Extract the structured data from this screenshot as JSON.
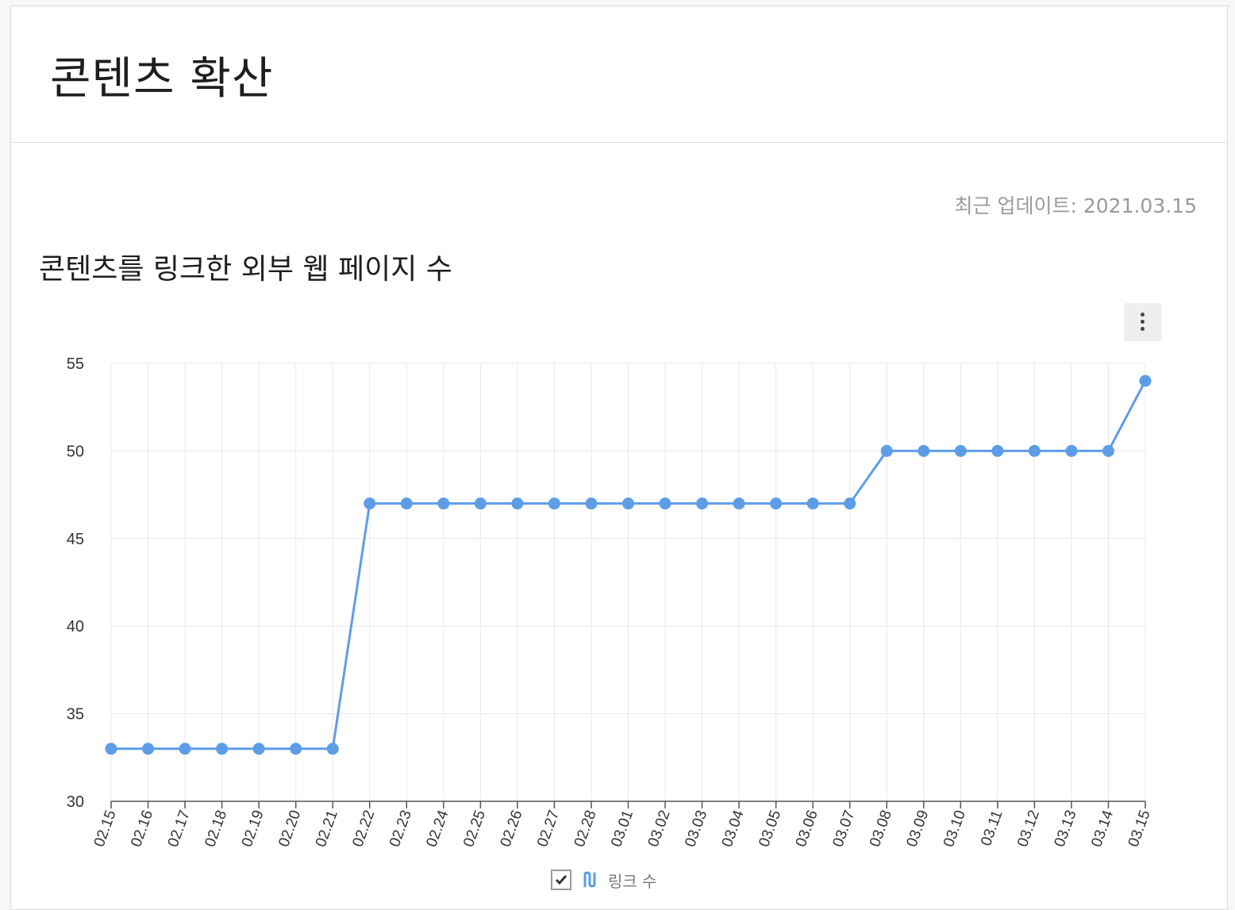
{
  "page_title": "콘텐츠 확산",
  "updated_text": "최근 업데이트: 2021.03.15",
  "section_title": "콘텐츠를 링크한 외부 웹 페이지 수",
  "menu": {
    "icon": "more-vertical-icon"
  },
  "legend": {
    "label": "링크 수",
    "checked": true,
    "check_icon": "checkmark-icon",
    "series_icon": "line-series-icon"
  },
  "colors": {
    "series": "#5d9de8",
    "grid": "#e8e8e8",
    "axis": "#555555"
  },
  "chart_data": {
    "type": "line",
    "title": "콘텐츠를 링크한 외부 웹 페이지 수",
    "xlabel": "",
    "ylabel": "",
    "categories": [
      "02.15",
      "02.16",
      "02.17",
      "02.18",
      "02.19",
      "02.20",
      "02.21",
      "02.22",
      "02.23",
      "02.24",
      "02.25",
      "02.26",
      "02.27",
      "02.28",
      "03.01",
      "03.02",
      "03.03",
      "03.04",
      "03.05",
      "03.06",
      "03.07",
      "03.08",
      "03.09",
      "03.10",
      "03.11",
      "03.12",
      "03.13",
      "03.14",
      "03.15"
    ],
    "series": [
      {
        "name": "링크 수",
        "values": [
          33,
          33,
          33,
          33,
          33,
          33,
          33,
          47,
          47,
          47,
          47,
          47,
          47,
          47,
          47,
          47,
          47,
          47,
          47,
          47,
          47,
          50,
          50,
          50,
          50,
          50,
          50,
          50,
          54
        ]
      }
    ],
    "ylim": [
      30,
      55
    ],
    "yticks": [
      30,
      35,
      40,
      45,
      50,
      55
    ],
    "grid": true,
    "legend_position": "bottom"
  }
}
